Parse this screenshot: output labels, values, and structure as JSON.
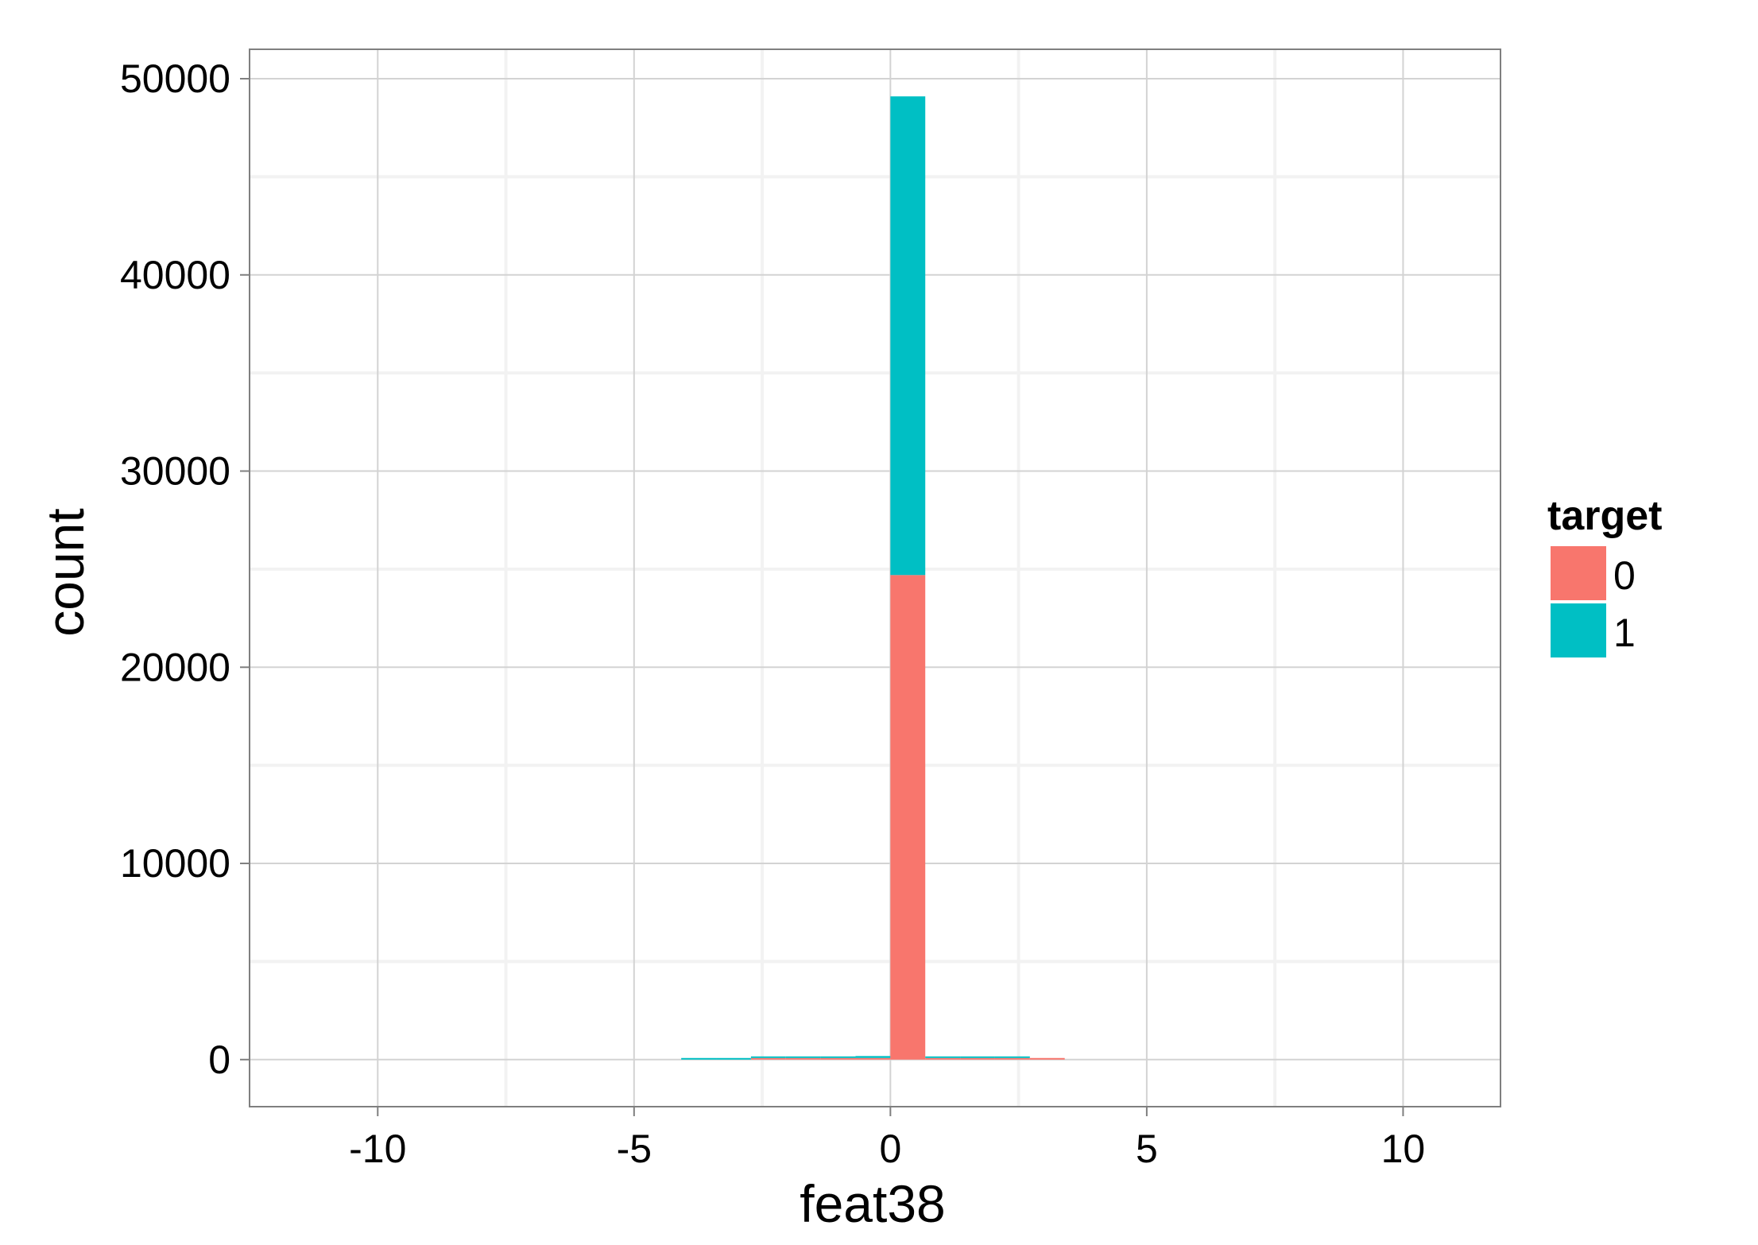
{
  "chart_data": {
    "type": "bar",
    "subtype": "stacked-histogram",
    "xlabel": "feat38",
    "ylabel": "count",
    "xlim": [
      -12.5,
      11.9
    ],
    "ylim": [
      -2400,
      51500
    ],
    "x_ticks": [
      -10,
      -5,
      0,
      5,
      10
    ],
    "x_tick_labels": [
      "-10",
      "-5",
      "0",
      "5",
      "10"
    ],
    "y_ticks": [
      0,
      10000,
      20000,
      30000,
      40000,
      50000
    ],
    "y_tick_labels": [
      "0",
      "10000",
      "20000",
      "30000",
      "40000",
      "50000"
    ],
    "grid": true,
    "legend": {
      "title": "target",
      "position": "right",
      "entries": [
        {
          "label": "0",
          "color": "#F8766D"
        },
        {
          "label": "1",
          "color": "#00BFC4"
        }
      ]
    },
    "bin_width": 0.68,
    "bins": [
      {
        "x_start": -4.08,
        "x_end": -3.4,
        "count_0": 0,
        "count_1": 20
      },
      {
        "x_start": -3.4,
        "x_end": -2.72,
        "count_0": 0,
        "count_1": 25
      },
      {
        "x_start": -2.72,
        "x_end": -2.04,
        "count_0": 10,
        "count_1": 40
      },
      {
        "x_start": -2.04,
        "x_end": -1.36,
        "count_0": 10,
        "count_1": 45
      },
      {
        "x_start": -1.36,
        "x_end": -0.68,
        "count_0": 20,
        "count_1": 60
      },
      {
        "x_start": -0.68,
        "x_end": 0.0,
        "count_0": 40,
        "count_1": 100
      },
      {
        "x_start": 0.0,
        "x_end": 0.68,
        "count_0": 24700,
        "count_1": 24400
      },
      {
        "x_start": 0.68,
        "x_end": 1.36,
        "count_0": 50,
        "count_1": 40
      },
      {
        "x_start": 1.36,
        "x_end": 2.04,
        "count_0": 30,
        "count_1": 30
      },
      {
        "x_start": 2.04,
        "x_end": 2.72,
        "count_0": 20,
        "count_1": 10
      },
      {
        "x_start": 2.72,
        "x_end": 3.4,
        "count_0": 15,
        "count_1": 0
      }
    ]
  },
  "colors": {
    "panel_background": "#ffffff",
    "major_grid": "#D3D3D3",
    "minor_grid": "#F2F2F2",
    "panel_border": "#7F7F7F",
    "series_0": "#F8766D",
    "series_1": "#00BFC4"
  }
}
